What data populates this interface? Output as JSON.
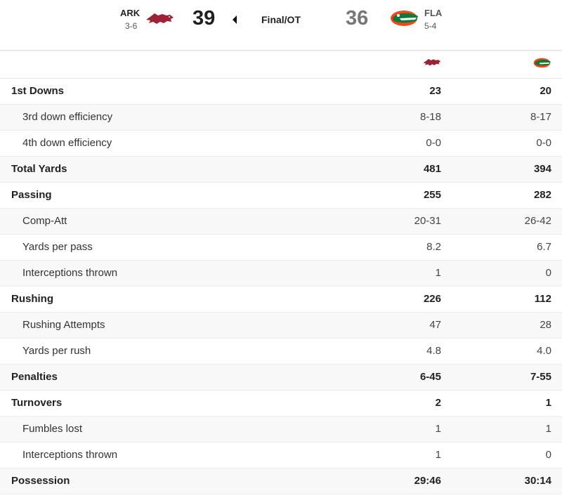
{
  "header": {
    "away": {
      "abbr": "ARK",
      "record": "3-6",
      "score": "39",
      "logo_icon": "razorback-logo-icon",
      "color": "#9d2235"
    },
    "home": {
      "abbr": "FLA",
      "record": "5-4",
      "score": "36",
      "logo_icon": "gator-logo-icon",
      "color": "#0021a5",
      "accent": "#fa4616"
    },
    "status": "Final/OT",
    "winner_indicator_icon": "caret-left-icon",
    "away_score_color": "#1f1f1f",
    "home_score_color": "#777777"
  },
  "stats": [
    {
      "label": "1st Downs",
      "away": "23",
      "home": "20",
      "type": "main"
    },
    {
      "label": "3rd down efficiency",
      "away": "8-18",
      "home": "8-17",
      "type": "sub"
    },
    {
      "label": "4th down efficiency",
      "away": "0-0",
      "home": "0-0",
      "type": "sub"
    },
    {
      "label": "Total Yards",
      "away": "481",
      "home": "394",
      "type": "main"
    },
    {
      "label": "Passing",
      "away": "255",
      "home": "282",
      "type": "main"
    },
    {
      "label": "Comp-Att",
      "away": "20-31",
      "home": "26-42",
      "type": "sub"
    },
    {
      "label": "Yards per pass",
      "away": "8.2",
      "home": "6.7",
      "type": "sub"
    },
    {
      "label": "Interceptions thrown",
      "away": "1",
      "home": "0",
      "type": "sub"
    },
    {
      "label": "Rushing",
      "away": "226",
      "home": "112",
      "type": "main"
    },
    {
      "label": "Rushing Attempts",
      "away": "47",
      "home": "28",
      "type": "sub"
    },
    {
      "label": "Yards per rush",
      "away": "4.8",
      "home": "4.0",
      "type": "sub"
    },
    {
      "label": "Penalties",
      "away": "6-45",
      "home": "7-55",
      "type": "main"
    },
    {
      "label": "Turnovers",
      "away": "2",
      "home": "1",
      "type": "main"
    },
    {
      "label": "Fumbles lost",
      "away": "1",
      "home": "1",
      "type": "sub"
    },
    {
      "label": "Interceptions thrown",
      "away": "1",
      "home": "0",
      "type": "sub"
    },
    {
      "label": "Possession",
      "away": "29:46",
      "home": "30:14",
      "type": "main"
    }
  ]
}
